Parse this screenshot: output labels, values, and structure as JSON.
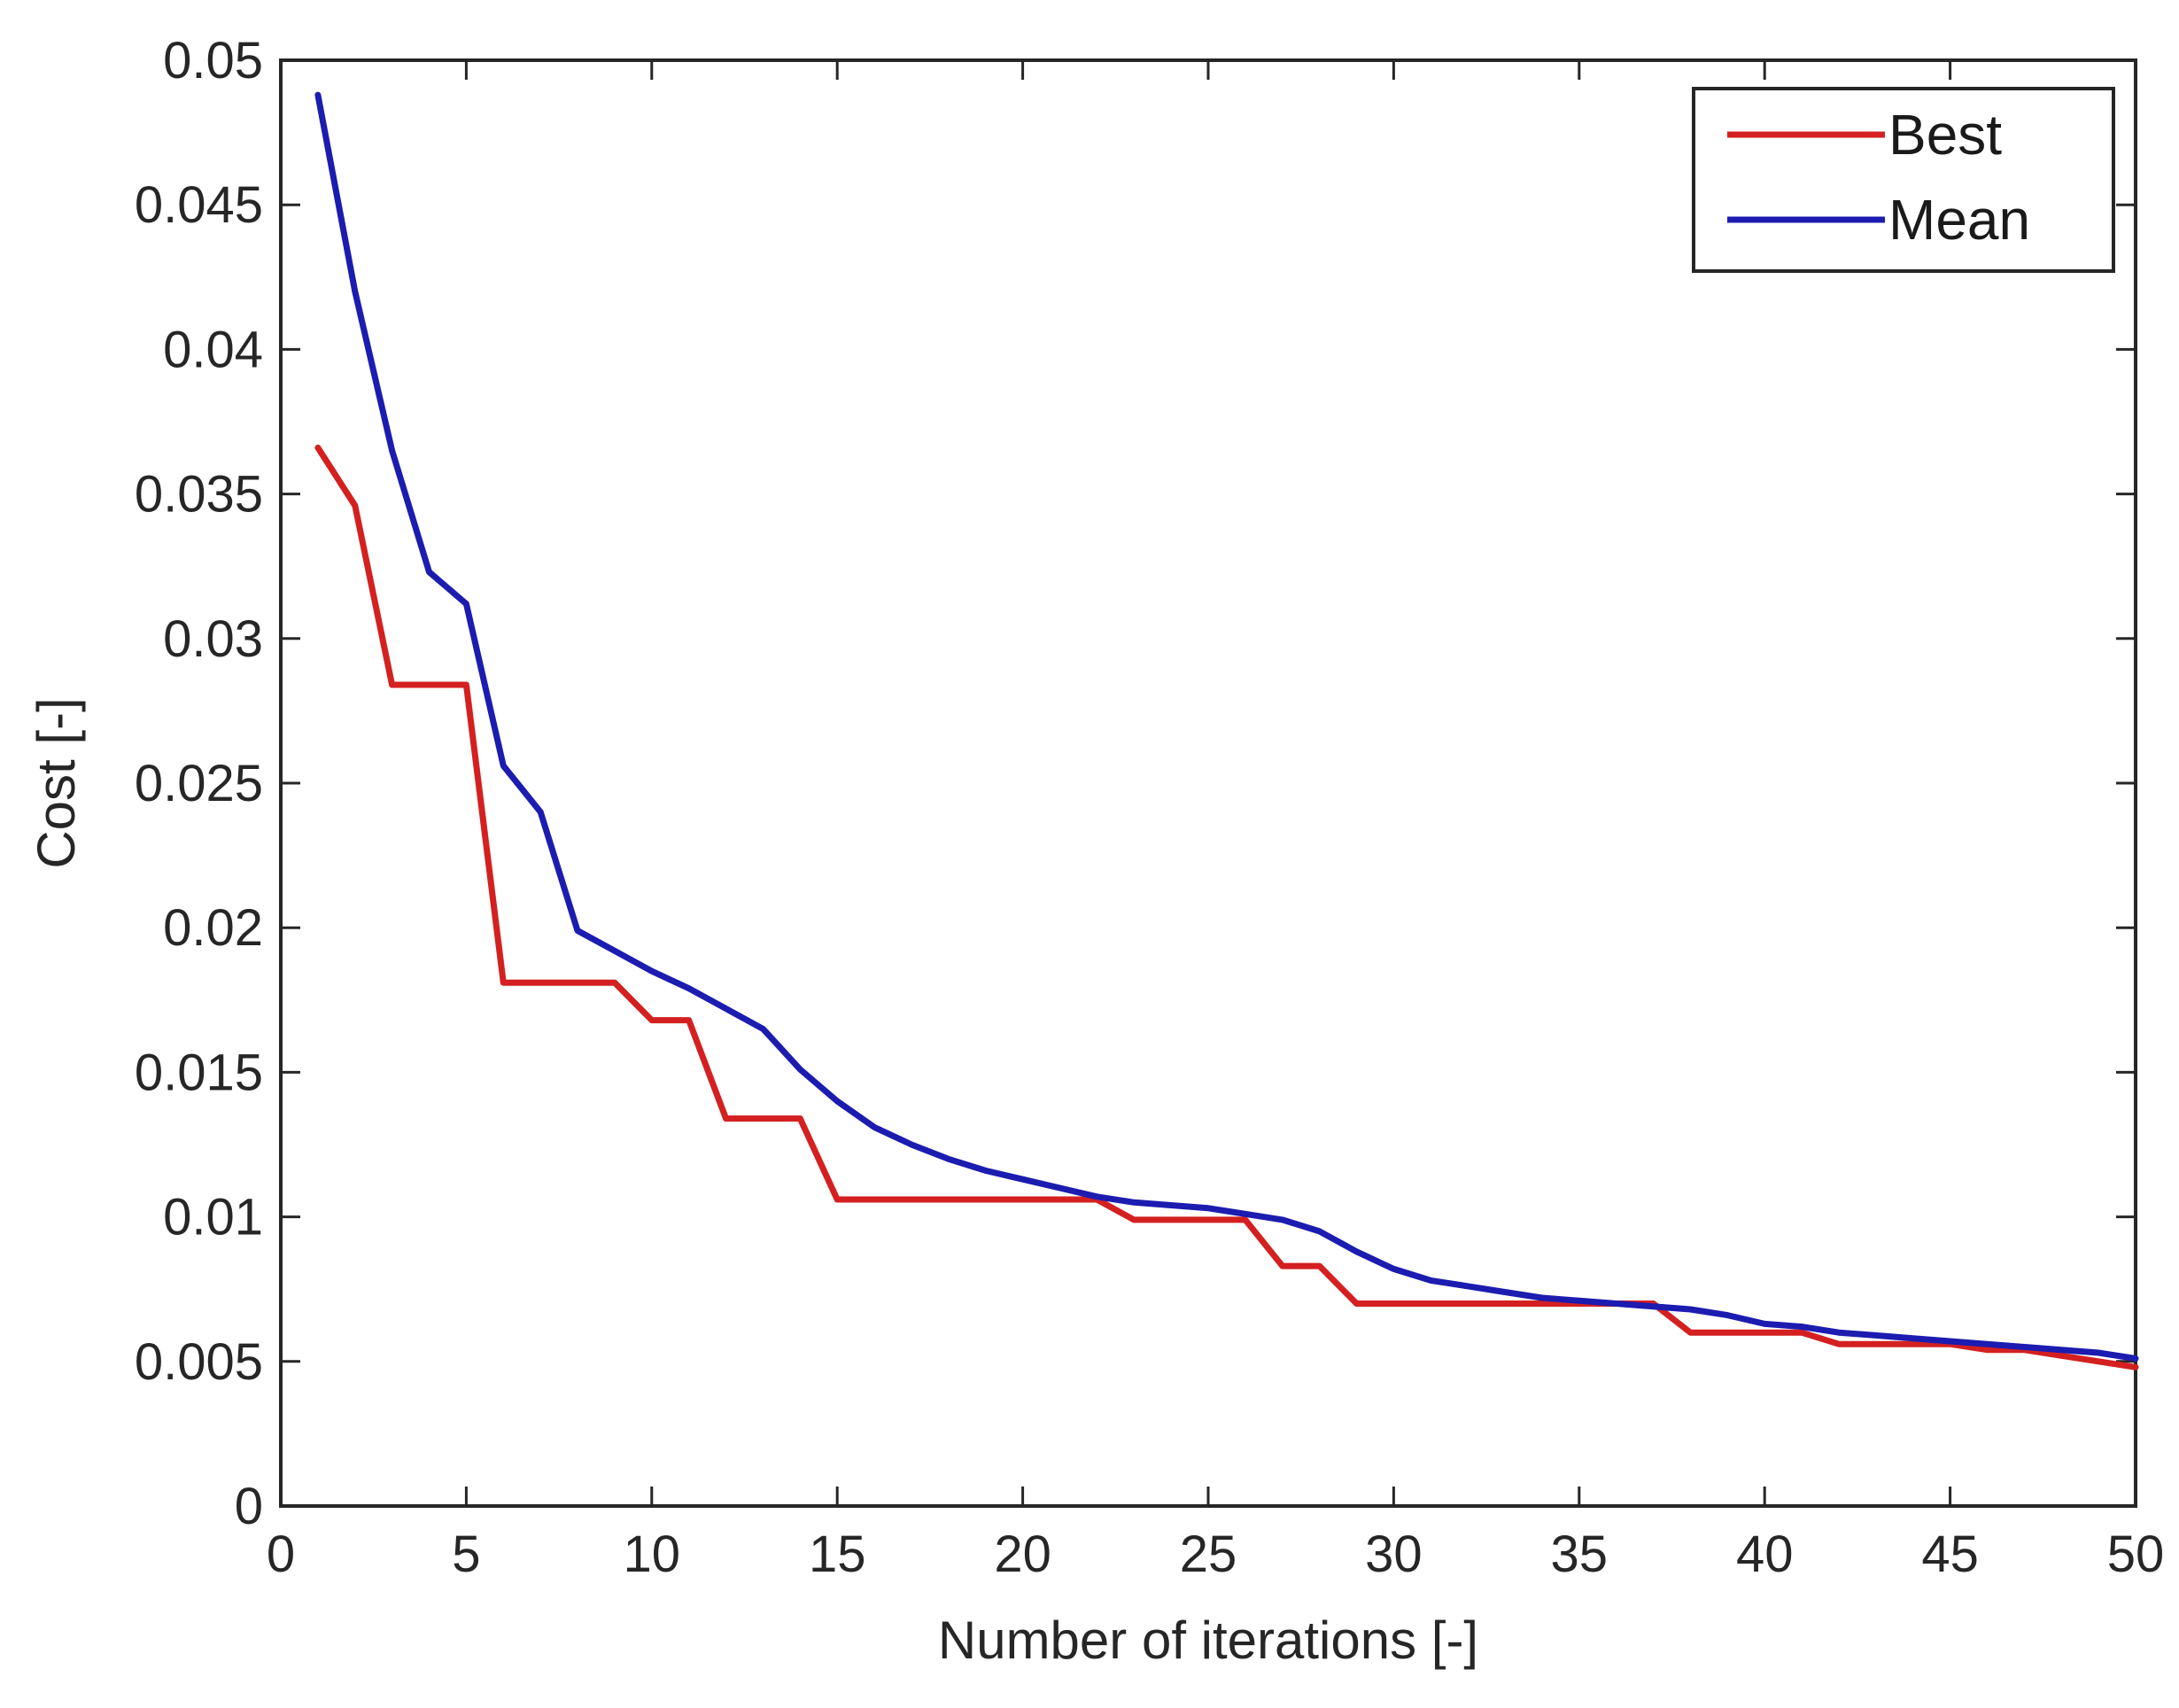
{
  "chart_data": {
    "type": "line",
    "title": "",
    "xlabel": "Number of iterations [-]",
    "ylabel": "Cost [-]",
    "xlim": [
      0,
      50
    ],
    "ylim": [
      0,
      0.05
    ],
    "grid": false,
    "legend_placement": "top-right",
    "x_ticks": [
      0,
      5,
      10,
      15,
      20,
      25,
      30,
      35,
      40,
      45,
      50
    ],
    "x_tick_labels": [
      "0",
      "5",
      "10",
      "15",
      "20",
      "25",
      "30",
      "35",
      "40",
      "45",
      "50"
    ],
    "y_ticks": [
      0,
      0.005,
      0.01,
      0.015,
      0.02,
      0.025,
      0.03,
      0.035,
      0.04,
      0.045,
      0.05
    ],
    "y_tick_labels": [
      "0",
      "0.005",
      "0.01",
      "0.015",
      "0.02",
      "0.025",
      "0.03",
      "0.035",
      "0.04",
      "0.045",
      "0.05"
    ],
    "series": [
      {
        "name": "Best",
        "color": "#d42020",
        "x": [
          1,
          2,
          3,
          4,
          5,
          6,
          7,
          8,
          9,
          10,
          11,
          12,
          13,
          14,
          15,
          16,
          17,
          18,
          19,
          20,
          21,
          22,
          23,
          24,
          25,
          26,
          27,
          28,
          29,
          30,
          31,
          32,
          33,
          34,
          35,
          36,
          37,
          38,
          39,
          40,
          41,
          42,
          43,
          44,
          45,
          46,
          47,
          48,
          49,
          50
        ],
        "values": [
          0.0366,
          0.0346,
          0.0284,
          0.0284,
          0.0284,
          0.0181,
          0.0181,
          0.0181,
          0.0181,
          0.0168,
          0.0168,
          0.0134,
          0.0134,
          0.0134,
          0.0106,
          0.0106,
          0.0106,
          0.0106,
          0.0106,
          0.0106,
          0.0106,
          0.0106,
          0.0099,
          0.0099,
          0.0099,
          0.0099,
          0.0083,
          0.0083,
          0.007,
          0.007,
          0.007,
          0.007,
          0.007,
          0.007,
          0.007,
          0.007,
          0.007,
          0.006,
          0.006,
          0.006,
          0.006,
          0.0056,
          0.0056,
          0.0056,
          0.0056,
          0.0054,
          0.0054,
          0.0052,
          0.005,
          0.0048
        ]
      },
      {
        "name": "Mean",
        "color": "#1c1cb0",
        "x": [
          1,
          2,
          3,
          4,
          5,
          6,
          7,
          8,
          9,
          10,
          11,
          12,
          13,
          14,
          15,
          16,
          17,
          18,
          19,
          20,
          21,
          22,
          23,
          24,
          25,
          26,
          27,
          28,
          29,
          30,
          31,
          32,
          33,
          34,
          35,
          36,
          37,
          38,
          39,
          40,
          41,
          42,
          43,
          44,
          45,
          46,
          47,
          48,
          49,
          50
        ],
        "values": [
          0.0488,
          0.042,
          0.0365,
          0.0323,
          0.0312,
          0.0256,
          0.024,
          0.0199,
          0.0192,
          0.0185,
          0.0179,
          0.0172,
          0.0165,
          0.0151,
          0.014,
          0.0131,
          0.0125,
          0.012,
          0.0116,
          0.0113,
          0.011,
          0.0107,
          0.0105,
          0.0104,
          0.0103,
          0.0101,
          0.0099,
          0.0095,
          0.0088,
          0.0082,
          0.0078,
          0.0076,
          0.0074,
          0.0072,
          0.0071,
          0.007,
          0.0069,
          0.0068,
          0.0066,
          0.0063,
          0.0062,
          0.006,
          0.0059,
          0.0058,
          0.0057,
          0.0056,
          0.0055,
          0.0054,
          0.0053,
          0.0051
        ]
      }
    ]
  }
}
